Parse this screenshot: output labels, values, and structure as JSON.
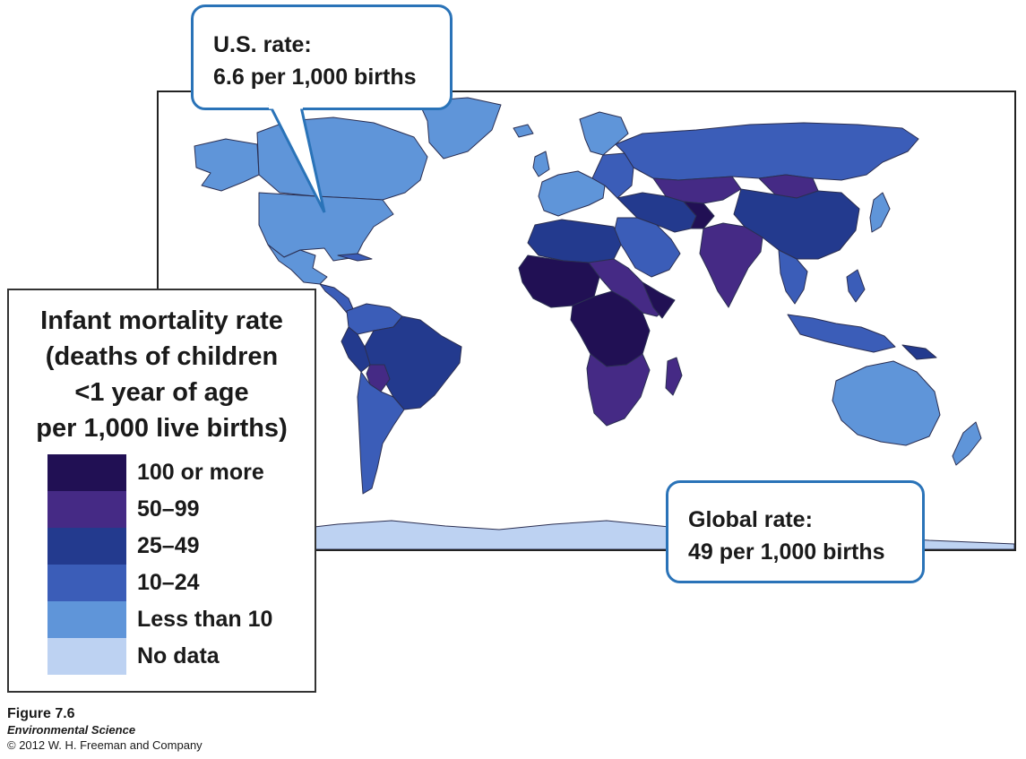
{
  "us_callout": {
    "line1": "U.S. rate:",
    "line2": "6.6 per 1,000 births"
  },
  "global_callout": {
    "line1": "Global rate:",
    "line2": "49 per 1,000 births"
  },
  "legend": {
    "title_lines": [
      "Infant mortality rate",
      "(deaths of children",
      "<1 year of age",
      "per 1,000 live births)"
    ],
    "items": [
      {
        "label": "100 or more",
        "color": "#211054"
      },
      {
        "label": "50–99",
        "color": "#452a85"
      },
      {
        "label": "25–49",
        "color": "#233a8e"
      },
      {
        "label": "10–24",
        "color": "#3b5db8"
      },
      {
        "label": "Less than 10",
        "color": "#5f95d9"
      },
      {
        "label": "No data",
        "color": "#bdd2f2"
      }
    ]
  },
  "caption": {
    "figure": "Figure 7.6",
    "book": "Environmental Science",
    "copyright": "© 2012 W. H. Freeman and Company"
  },
  "colors": {
    "border": "#2a73b8",
    "country_border": "#2b2f52"
  }
}
